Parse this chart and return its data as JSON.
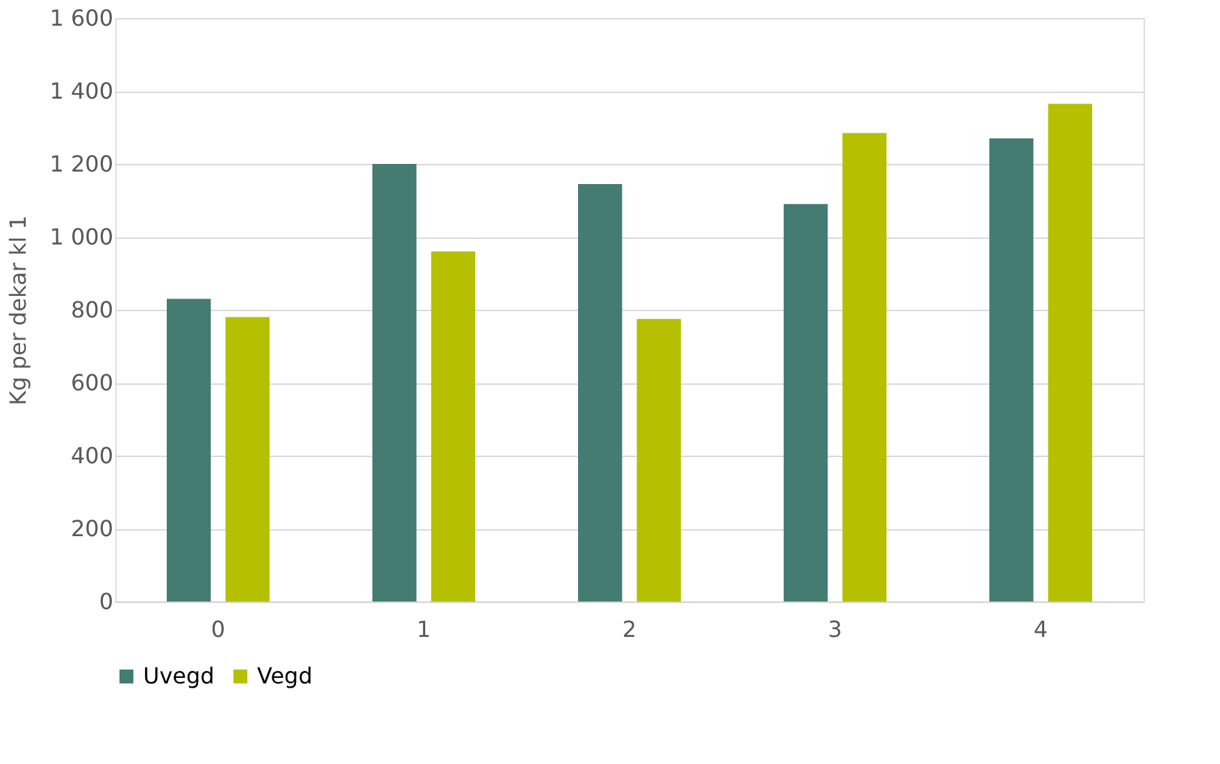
{
  "chart_data": {
    "type": "bar",
    "ylabel": "Kg per dekar kl 1",
    "categories": [
      "0",
      "1",
      "2",
      "3",
      "4"
    ],
    "series": [
      {
        "name": "Uvegd",
        "color": "#447c72",
        "values": [
          830,
          1200,
          1145,
          1090,
          1270
        ]
      },
      {
        "name": "Vegd",
        "color": "#b5c000",
        "values": [
          780,
          960,
          775,
          1285,
          1365
        ]
      }
    ],
    "ylim": [
      0,
      1600
    ],
    "yticks": [
      0,
      200,
      400,
      600,
      800,
      {
        "value": 1000,
        "label": "1 000"
      },
      {
        "value": 1200,
        "label": "1 200"
      },
      {
        "value": 1400,
        "label": "1 400"
      },
      {
        "value": 1600,
        "label": "1 600"
      }
    ],
    "grid": "y",
    "legend": "bottom"
  }
}
